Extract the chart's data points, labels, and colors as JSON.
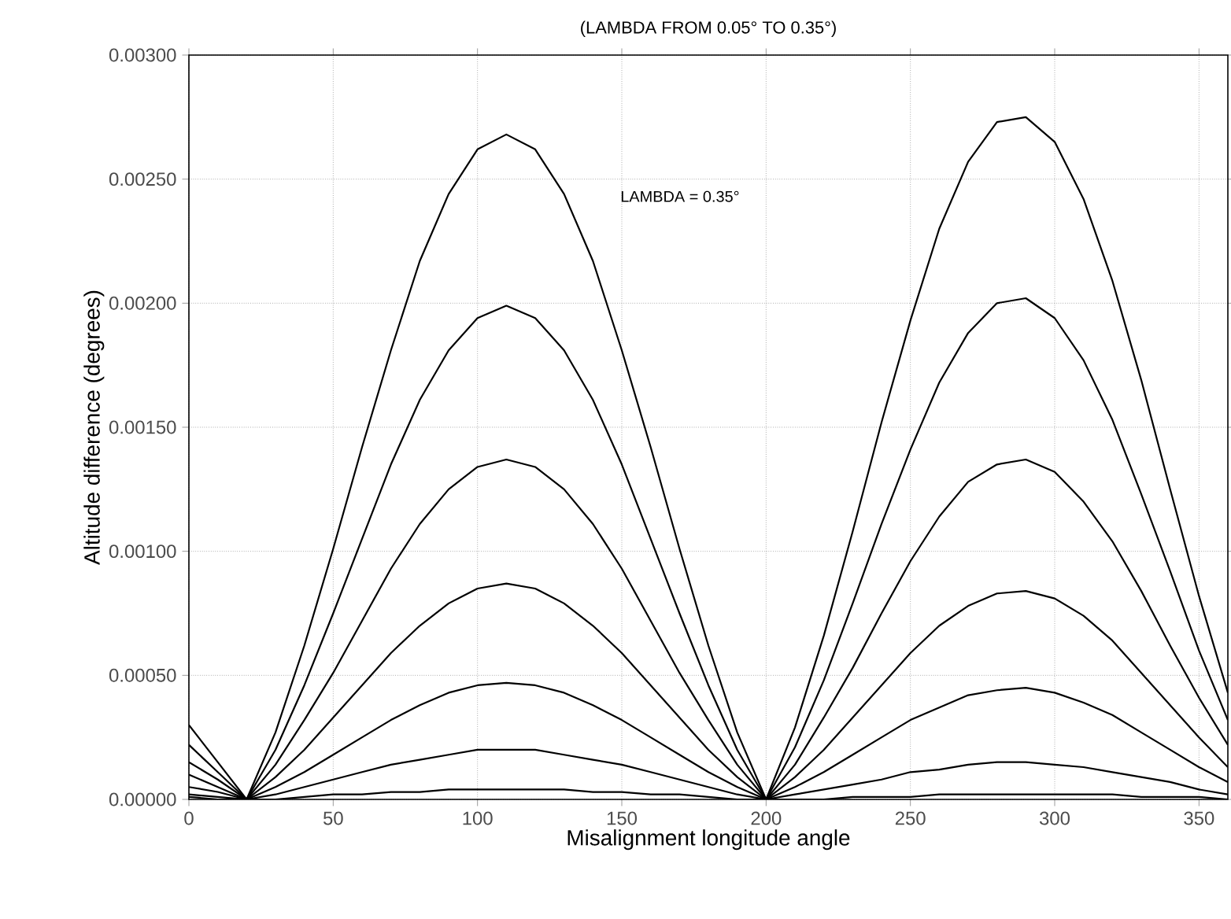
{
  "chart_data": {
    "type": "line",
    "title": "(LAMBDA FROM 0.05° TO 0.35°)",
    "xlabel": "Misalignment longitude angle",
    "ylabel": "Altitude difference (degrees)",
    "annotations": [
      "LAMBDA = 0.35°"
    ],
    "x": [
      0,
      10,
      20,
      30,
      40,
      50,
      60,
      70,
      80,
      90,
      100,
      110,
      120,
      130,
      140,
      150,
      160,
      170,
      180,
      190,
      200,
      210,
      220,
      230,
      240,
      250,
      260,
      270,
      280,
      290,
      300,
      310,
      320,
      330,
      340,
      350,
      360
    ],
    "series": [
      {
        "color": "#000000",
        "values": [
          0.0003,
          0.00015,
          0,
          0.00027,
          0.00062,
          0.00101,
          0.00142,
          0.00181,
          0.00217,
          0.00244,
          0.00262,
          0.00268,
          0.00262,
          0.00244,
          0.00217,
          0.00181,
          0.00142,
          0.00101,
          0.00062,
          0.00027,
          0,
          0.00029,
          0.00066,
          0.00108,
          0.00152,
          0.00193,
          0.0023,
          0.00257,
          0.00273,
          0.00275,
          0.00265,
          0.00242,
          0.00209,
          0.00169,
          0.00125,
          0.00082,
          0.00043
        ]
      },
      {
        "color": "#000000",
        "values": [
          0.00022,
          0.00011,
          0,
          0.0002,
          0.00046,
          0.00075,
          0.00105,
          0.00135,
          0.00161,
          0.00181,
          0.00194,
          0.00199,
          0.00194,
          0.00181,
          0.00161,
          0.00135,
          0.00105,
          0.00075,
          0.00046,
          0.0002,
          0,
          0.00021,
          0.00048,
          0.00079,
          0.00111,
          0.00141,
          0.00168,
          0.00188,
          0.002,
          0.00202,
          0.00194,
          0.00177,
          0.00153,
          0.00123,
          0.00092,
          0.0006,
          0.00032
        ]
      },
      {
        "color": "#000000",
        "values": [
          0.00015,
          8e-05,
          0,
          0.00014,
          0.00032,
          0.00051,
          0.00072,
          0.00093,
          0.00111,
          0.00125,
          0.00134,
          0.00137,
          0.00134,
          0.00125,
          0.00111,
          0.00093,
          0.00072,
          0.00051,
          0.00032,
          0.00014,
          0,
          0.00014,
          0.00033,
          0.00053,
          0.00075,
          0.00096,
          0.00114,
          0.00128,
          0.00135,
          0.00137,
          0.00132,
          0.0012,
          0.00104,
          0.00084,
          0.00062,
          0.00041,
          0.00022
        ]
      },
      {
        "color": "#000000",
        "values": [
          0.0001,
          5e-05,
          0,
          9e-05,
          0.0002,
          0.00033,
          0.00046,
          0.00059,
          0.0007,
          0.00079,
          0.00085,
          0.00087,
          0.00085,
          0.00079,
          0.0007,
          0.00059,
          0.00046,
          0.00033,
          0.0002,
          9e-05,
          0,
          9e-05,
          0.0002,
          0.00033,
          0.00046,
          0.00059,
          0.0007,
          0.00078,
          0.00083,
          0.00084,
          0.00081,
          0.00074,
          0.00064,
          0.00051,
          0.00038,
          0.00025,
          0.00013
        ]
      },
      {
        "color": "#000000",
        "values": [
          5e-05,
          3e-05,
          0,
          5e-05,
          0.00011,
          0.00018,
          0.00025,
          0.00032,
          0.00038,
          0.00043,
          0.00046,
          0.00047,
          0.00046,
          0.00043,
          0.00038,
          0.00032,
          0.00025,
          0.00018,
          0.00011,
          5e-05,
          0,
          5e-05,
          0.00011,
          0.00018,
          0.00025,
          0.00032,
          0.00037,
          0.00042,
          0.00044,
          0.00045,
          0.00043,
          0.00039,
          0.00034,
          0.00027,
          0.0002,
          0.00013,
          7e-05
        ]
      },
      {
        "color": "#000000",
        "values": [
          2e-05,
          1e-05,
          0,
          2e-05,
          5e-05,
          8e-05,
          0.00011,
          0.00014,
          0.00016,
          0.00018,
          0.0002,
          0.0002,
          0.0002,
          0.00018,
          0.00016,
          0.00014,
          0.00011,
          8e-05,
          5e-05,
          2e-05,
          0,
          2e-05,
          4e-05,
          6e-05,
          8e-05,
          0.00011,
          0.00012,
          0.00014,
          0.00015,
          0.00015,
          0.00014,
          0.00013,
          0.00011,
          9e-05,
          7e-05,
          4e-05,
          2e-05
        ]
      },
      {
        "color": "#000000",
        "values": [
          1e-05,
          0,
          0,
          0,
          1e-05,
          2e-05,
          2e-05,
          3e-05,
          3e-05,
          4e-05,
          4e-05,
          4e-05,
          4e-05,
          4e-05,
          3e-05,
          3e-05,
          2e-05,
          2e-05,
          1e-05,
          0,
          0,
          0,
          0,
          1e-05,
          1e-05,
          1e-05,
          2e-05,
          2e-05,
          2e-05,
          2e-05,
          2e-05,
          2e-05,
          2e-05,
          1e-05,
          1e-05,
          1e-05,
          0
        ]
      }
    ],
    "xlim": [
      0,
      360
    ],
    "ylim": [
      0,
      0.003
    ],
    "xticks": [
      0,
      50,
      100,
      150,
      200,
      250,
      300,
      350
    ],
    "yticks": [
      {
        "value": 0,
        "label": "0.00000"
      },
      {
        "value": 0.0005,
        "label": "0.00050"
      },
      {
        "value": 0.001,
        "label": "0.00100"
      },
      {
        "value": 0.0015,
        "label": "0.00150"
      },
      {
        "value": 0.002,
        "label": "0.00200"
      },
      {
        "value": 0.0025,
        "label": "0.00250"
      },
      {
        "value": 0.003,
        "label": "0.00300"
      }
    ],
    "grid": true
  }
}
